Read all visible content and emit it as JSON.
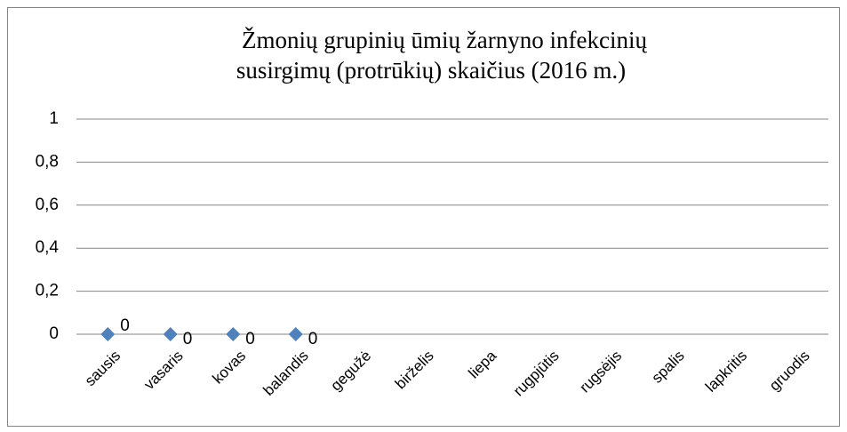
{
  "chart_data": {
    "type": "line",
    "title": [
      "Žmonių grupinių ūmių žarnyno infekcinių",
      "susirgimų (protrūkių) skaičius (2016 m.)"
    ],
    "categories": [
      "sausis",
      "vasaris",
      "kovas",
      "balandis",
      "gegužė",
      "birželis",
      "liepa",
      "rugpjūtis",
      "rugsėjis",
      "spalis",
      "lapkritis",
      "gruodis"
    ],
    "series": [
      {
        "color": "#4f81bd",
        "values": [
          0,
          0,
          0,
          0,
          null,
          null,
          null,
          null,
          null,
          null,
          null,
          null
        ]
      }
    ],
    "ylim": [
      0,
      1
    ],
    "yticks": [
      0,
      {
        "value": 0.2,
        "label": "0,2"
      },
      {
        "value": 0.4,
        "label": "0,4"
      },
      {
        "value": 0.6,
        "label": "0,6"
      },
      {
        "value": 0.8,
        "label": "0,8"
      },
      1
    ],
    "grid": true,
    "markers": "diamond",
    "line": false,
    "data_labels": true
  }
}
